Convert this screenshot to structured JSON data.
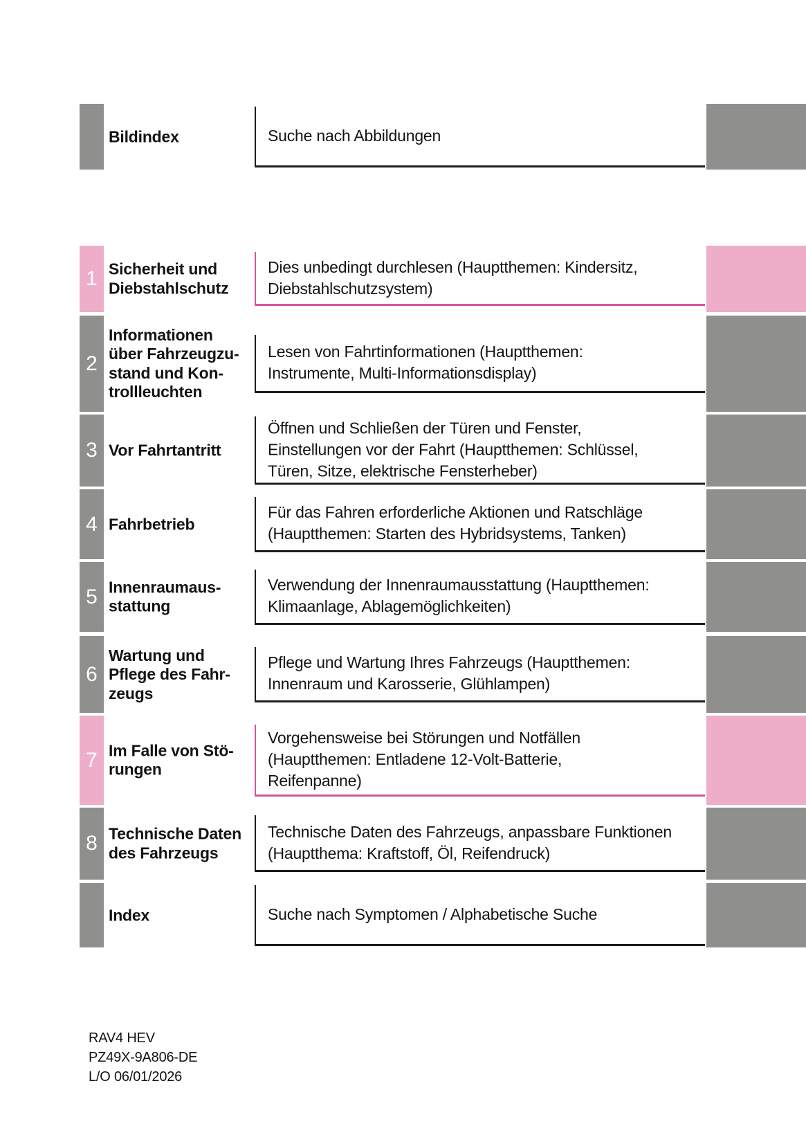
{
  "document": {
    "rows": [
      {
        "number": "",
        "accent": "gray",
        "title": "Bildindex",
        "description": "Suche nach Abbildungen"
      },
      {
        "number": "1",
        "accent": "pink",
        "title": "Sicherheit und\nDiebstahlschutz",
        "description": "Dies unbedingt durchlesen (Hauptthemen: Kindersitz,\nDiebstahlschutzsystem)"
      },
      {
        "number": "2",
        "accent": "gray",
        "title": "Informationen\nüber Fahrzeugzu-\nstand und Kon-\ntrollleuchten",
        "description": "Lesen von Fahrtinformationen (Hauptthemen:\nInstrumente, Multi-Informationsdisplay)"
      },
      {
        "number": "3",
        "accent": "gray",
        "title": "Vor Fahrtantritt",
        "description": "Öffnen und Schließen der Türen und Fenster,\nEinstellungen vor der Fahrt (Hauptthemen: Schlüssel,\nTüren, Sitze, elektrische Fensterheber)"
      },
      {
        "number": "4",
        "accent": "gray",
        "title": "Fahrbetrieb",
        "description": "Für das Fahren erforderliche Aktionen und Ratschläge\n(Hauptthemen: Starten des Hybridsystems, Tanken)"
      },
      {
        "number": "5",
        "accent": "gray",
        "title": "Innenraumaus-\nstattung",
        "description": "Verwendung der Innenraumausstattung (Hauptthemen:\nKlimaanlage, Ablagemöglichkeiten)"
      },
      {
        "number": "6",
        "accent": "gray",
        "title": "Wartung und\nPflege des Fahr-\nzeugs",
        "description": "Pflege und Wartung Ihres Fahrzeugs (Hauptthemen:\nInnenraum und Karosserie, Glühlampen)"
      },
      {
        "number": "7",
        "accent": "pink",
        "title": "Im Falle von Stö-\nrungen",
        "description": "Vorgehensweise bei Störungen und Notfällen\n(Hauptthemen: Entladene 12-Volt-Batterie,\nReifenpanne)"
      },
      {
        "number": "8",
        "accent": "gray",
        "title": "Technische Daten\ndes Fahrzeugs",
        "description": "Technische Daten des Fahrzeugs, anpassbare Funktionen\n(Hauptthema: Kraftstoff, Öl, Reifendruck)"
      },
      {
        "number": "",
        "accent": "gray",
        "title": "Index",
        "description": "Suche nach Symptomen / Alphabetische Suche"
      }
    ],
    "footer": {
      "model": "RAV4 HEV",
      "part_number": "PZ49X-9A806-DE",
      "layout_date": "L/O 06/01/2026"
    },
    "colors": {
      "tab_gray": "#8f8f8d",
      "tab_pink": "#eeadc9",
      "pink_border": "#d4549b",
      "dark_border": "#1d1d1b",
      "text": "#131313"
    }
  }
}
